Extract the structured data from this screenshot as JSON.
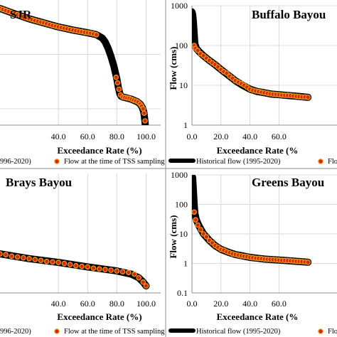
{
  "colors": {
    "historical_line": "#000000",
    "sample_fill": "#d42a00",
    "sample_stroke": "#f0a020",
    "grid": "#d9d9d9",
    "frame": "#8c8c8c"
  },
  "chart_data": [
    {
      "panel": "SJR",
      "type": "line",
      "title": "SJR",
      "xlabel": "Exceedance Rate (%)",
      "ylabel": "",
      "xlim": [
        0,
        110
      ],
      "xticks": [
        "40.0",
        "60.0",
        "80.0",
        "100.0"
      ],
      "yscale": "log",
      "grid": true,
      "legend_position": "bottom",
      "legend": [
        "996-2020)",
        "Flow at the time of TSS sampling"
      ],
      "series": [
        {
          "role": "historical",
          "x": [
            0,
            10,
            20,
            30,
            40,
            50,
            60,
            66,
            70,
            72,
            74,
            76,
            78,
            80,
            81,
            82,
            83,
            84,
            86,
            90,
            94,
            96,
            97.5,
            98.5,
            99.2,
            100
          ],
          "y": [
            700,
            560,
            450,
            380,
            320,
            280,
            250,
            230,
            200,
            170,
            130,
            92,
            60,
            35,
            25,
            19,
            17,
            16.5,
            16,
            15,
            13.5,
            12.2,
            10.5,
            8.5,
            6,
            3.5
          ]
        },
        {
          "role": "sampled",
          "x": [
            0,
            2,
            4,
            6,
            8,
            10,
            12,
            14,
            16,
            18,
            20,
            22,
            24,
            26,
            28,
            30,
            32,
            34,
            36,
            38,
            40,
            42,
            44,
            46,
            48,
            50,
            52,
            54,
            56,
            58,
            60,
            62,
            64,
            66,
            79.5,
            80.5,
            81.5,
            82.5,
            84,
            85.5,
            87,
            88.5,
            90,
            91.5,
            93,
            94.5,
            96,
            97,
            98,
            98.7,
            99.3,
            100
          ],
          "y": [
            700,
            670,
            640,
            615,
            585,
            560,
            535,
            515,
            492,
            470,
            450,
            435,
            420,
            405,
            392,
            380,
            366,
            353,
            341,
            330,
            320,
            311,
            303,
            295,
            287,
            280,
            273,
            267,
            261,
            255,
            250,
            245,
            238,
            230,
            38,
            30,
            23,
            18,
            16.5,
            16.2,
            15.8,
            15.6,
            15,
            14.4,
            13.9,
            13.3,
            12.2,
            11.2,
            10,
            8.3,
            6,
            3.5
          ]
        }
      ]
    },
    {
      "panel": "Buffalo Bayou",
      "type": "line",
      "title": "Buffalo Bayou",
      "xlabel": "Exceedance Rate (%",
      "ylabel": "Flow (cms)",
      "xlim": [
        0,
        100
      ],
      "xticks": [
        "0.0",
        "20.0",
        "40.0",
        "60.0"
      ],
      "yscale": "log",
      "ylim": [
        1,
        1000
      ],
      "yticks": [
        "1",
        "10",
        "100",
        "1000"
      ],
      "grid": true,
      "legend_position": "bottom",
      "legend": [
        "Historical flow (1995-2020)",
        "Flow at the t"
      ],
      "series": [
        {
          "role": "historical",
          "x": [
            0,
            0.5,
            1,
            1.5,
            2,
            3,
            5,
            8,
            12,
            16,
            20,
            25,
            30,
            35,
            40,
            45,
            50,
            55,
            60,
            65,
            70,
            75,
            80
          ],
          "y": [
            700,
            600,
            400,
            200,
            110,
            85,
            70,
            55,
            42,
            33,
            25,
            18,
            13,
            10,
            8,
            7,
            6.5,
            6,
            5.8,
            5.6,
            5.4,
            5.2,
            5.0
          ]
        },
        {
          "role": "sampled",
          "x": [
            1.5,
            2.5,
            4,
            6,
            8,
            10,
            12,
            14,
            16,
            18,
            20,
            22,
            24,
            26,
            28,
            30,
            32,
            34,
            36,
            38,
            40,
            42,
            44,
            46,
            48,
            50,
            52,
            54,
            56,
            58,
            60,
            62,
            64,
            66,
            68,
            70,
            72,
            74,
            76,
            78,
            80
          ],
          "y": [
            100,
            85,
            75,
            62,
            55,
            48,
            42,
            37,
            33,
            29,
            25,
            22,
            20,
            17,
            15,
            13,
            12,
            11,
            10,
            9,
            8,
            7.5,
            7.2,
            7,
            6.7,
            6.5,
            6.3,
            6.1,
            6,
            5.9,
            5.8,
            5.7,
            5.6,
            5.6,
            5.5,
            5.4,
            5.3,
            5.2,
            5.1,
            5.1,
            5.0
          ]
        }
      ]
    },
    {
      "panel": "Brays Bayou",
      "type": "line",
      "title": "Brays Bayou",
      "xlabel": "Exceedance Rate (%)",
      "ylabel": "",
      "xlim": [
        0,
        110
      ],
      "xticks": [
        "40.0",
        "60.0",
        "80.0",
        "100.0"
      ],
      "yscale": "log",
      "grid": true,
      "legend_position": "bottom",
      "legend": [
        "996-2020)",
        "Flow at the time of TSS sampling"
      ],
      "series": [
        {
          "role": "historical",
          "x": [
            0,
            20,
            40,
            60,
            80,
            90,
            95,
            98,
            100
          ],
          "y": [
            3.3,
            2.7,
            2.3,
            1.9,
            1.6,
            1.4,
            1.2,
            1.0,
            0.85
          ]
        },
        {
          "role": "sampled",
          "x": [
            0,
            4,
            8,
            12,
            16,
            20,
            24,
            28,
            32,
            36,
            40,
            44,
            48,
            52,
            56,
            60,
            64,
            68,
            72,
            76,
            80,
            84,
            88,
            92,
            95,
            98,
            100
          ],
          "y": [
            3.3,
            3.2,
            3.0,
            2.9,
            2.8,
            2.7,
            2.6,
            2.5,
            2.4,
            2.35,
            2.3,
            2.2,
            2.1,
            2.0,
            1.95,
            1.9,
            1.8,
            1.75,
            1.7,
            1.65,
            1.6,
            1.55,
            1.5,
            1.4,
            1.2,
            1.0,
            0.85
          ]
        }
      ]
    },
    {
      "panel": "Greens Bayou",
      "type": "line",
      "title": "Greens Bayou",
      "xlabel": "Exceedance Rate (%",
      "ylabel": "Flow (cms)",
      "xlim": [
        0,
        100
      ],
      "xticks": [
        "0.0",
        "20.0",
        "40.0",
        "60.0"
      ],
      "yscale": "log",
      "ylim": [
        0.1,
        1000
      ],
      "yticks": [
        "0.1",
        "1",
        "10",
        "100",
        "1000"
      ],
      "grid": true,
      "legend_position": "bottom",
      "legend": [
        "Historical flow (1995-2020)",
        "Flow at the t"
      ],
      "series": [
        {
          "role": "historical",
          "x": [
            0,
            0.5,
            1,
            1.5,
            2,
            3,
            5,
            8,
            12,
            16,
            20,
            25,
            30,
            35,
            40,
            45,
            50,
            55,
            60,
            65,
            70,
            75,
            80
          ],
          "y": [
            900,
            800,
            300,
            100,
            50,
            30,
            18,
            10,
            6,
            4,
            3,
            2.4,
            2,
            1.8,
            1.6,
            1.5,
            1.4,
            1.35,
            1.3,
            1.25,
            1.2,
            1.15,
            1.1
          ]
        },
        {
          "role": "sampled",
          "x": [
            1.5,
            2.5,
            4,
            6,
            8,
            10,
            12,
            14,
            16,
            18,
            20,
            22,
            24,
            26,
            28,
            30,
            32,
            34,
            36,
            38,
            40,
            42,
            44,
            46,
            48,
            50,
            52,
            54,
            56,
            58,
            60,
            62,
            64,
            66,
            68,
            70,
            72,
            74,
            76,
            78,
            80
          ],
          "y": [
            55,
            30,
            20,
            14,
            10,
            8,
            6,
            5,
            4,
            3.5,
            3,
            2.8,
            2.5,
            2.3,
            2.1,
            2,
            1.9,
            1.8,
            1.75,
            1.7,
            1.6,
            1.55,
            1.5,
            1.48,
            1.45,
            1.4,
            1.38,
            1.36,
            1.35,
            1.33,
            1.3,
            1.28,
            1.26,
            1.25,
            1.23,
            1.2,
            1.18,
            1.16,
            1.15,
            1.12,
            1.1
          ]
        }
      ]
    }
  ]
}
